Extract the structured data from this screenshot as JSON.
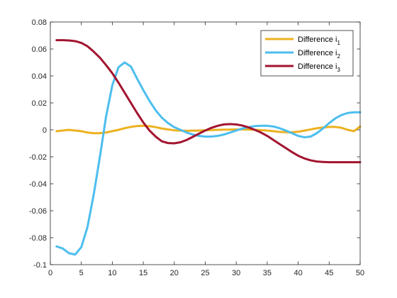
{
  "chart_data": {
    "type": "line",
    "title": "",
    "xlabel": "",
    "ylabel": "",
    "xlim": [
      0,
      50
    ],
    "ylim": [
      -0.1,
      0.08
    ],
    "xticks": [
      0,
      5,
      10,
      15,
      20,
      25,
      30,
      35,
      40,
      45,
      50
    ],
    "yticks": [
      -0.1,
      -0.08,
      -0.06,
      -0.04,
      -0.02,
      0,
      0.02,
      0.04,
      0.06,
      0.08
    ],
    "xtick_labels": [
      "0",
      "5",
      "10",
      "15",
      "20",
      "25",
      "30",
      "35",
      "40",
      "45",
      "50"
    ],
    "ytick_labels": [
      "-0.1",
      "-0.08",
      "-0.06",
      "-0.04",
      "-0.02",
      "0",
      "0.02",
      "0.04",
      "0.06",
      "0.08"
    ],
    "grid": false,
    "legend_position": "top-right",
    "series": [
      {
        "name": "Difference i",
        "subscript": "1",
        "color": "#EDB120",
        "x": [
          1,
          2,
          3,
          4,
          5,
          6,
          7,
          8,
          9,
          10,
          11,
          12,
          13,
          14,
          15,
          16,
          17,
          18,
          19,
          20,
          21,
          22,
          23,
          24,
          25,
          26,
          27,
          28,
          29,
          30,
          31,
          32,
          33,
          34,
          35,
          36,
          37,
          38,
          39,
          40,
          41,
          42,
          43,
          44,
          45,
          46,
          47,
          48,
          49,
          50
        ],
        "y": [
          -0.001,
          -0.0005,
          0,
          -0.0005,
          -0.001,
          -0.002,
          -0.0025,
          -0.0025,
          -0.002,
          -0.001,
          0,
          0.0012,
          0.0022,
          0.0028,
          0.003,
          0.0027,
          0.002,
          0.001,
          0.0003,
          -0.0003,
          -0.0006,
          -0.0007,
          -0.0006,
          -0.0005,
          -0.0003,
          -0.0001,
          0,
          0.0001,
          0.0002,
          0.0003,
          0.0003,
          0.0002,
          0,
          -0.0002,
          -0.0005,
          -0.001,
          -0.0015,
          -0.0018,
          -0.0018,
          -0.0014,
          -0.0006,
          0.0003,
          0.0012,
          0.0018,
          0.0022,
          0.0022,
          0.0015,
          0,
          -0.001,
          0.0025
        ]
      },
      {
        "name": "Difference i",
        "subscript": "2",
        "color": "#4DBEEE",
        "x": [
          1,
          2,
          3,
          4,
          5,
          6,
          7,
          8,
          9,
          10,
          11,
          12,
          13,
          14,
          15,
          16,
          17,
          18,
          19,
          20,
          21,
          22,
          23,
          24,
          25,
          26,
          27,
          28,
          29,
          30,
          31,
          32,
          33,
          34,
          35,
          36,
          37,
          38,
          39,
          40,
          41,
          42,
          43,
          44,
          45,
          46,
          47,
          48,
          49,
          50
        ],
        "y": [
          -0.0865,
          -0.088,
          -0.0915,
          -0.0925,
          -0.087,
          -0.072,
          -0.048,
          -0.02,
          0.01,
          0.033,
          0.0465,
          0.05,
          0.047,
          0.038,
          0.0295,
          0.0215,
          0.0145,
          0.009,
          0.005,
          0.002,
          0,
          -0.002,
          -0.0035,
          -0.0045,
          -0.005,
          -0.005,
          -0.0045,
          -0.0035,
          -0.002,
          -0.0005,
          0.001,
          0.002,
          0.0028,
          0.003,
          0.003,
          0.0025,
          0.0012,
          -0.0005,
          -0.0025,
          -0.0045,
          -0.0055,
          -0.005,
          -0.0025,
          0.001,
          0.005,
          0.0085,
          0.011,
          0.0125,
          0.013,
          0.013
        ]
      },
      {
        "name": "Difference i",
        "subscript": "3",
        "color": "#A2142F",
        "x": [
          1,
          2,
          3,
          4,
          5,
          6,
          7,
          8,
          9,
          10,
          11,
          12,
          13,
          14,
          15,
          16,
          17,
          18,
          19,
          20,
          21,
          22,
          23,
          24,
          25,
          26,
          27,
          28,
          29,
          30,
          31,
          32,
          33,
          34,
          35,
          36,
          37,
          38,
          39,
          40,
          41,
          42,
          43,
          44,
          45,
          46,
          47,
          48,
          49,
          50
        ],
        "y": [
          0.0665,
          0.0665,
          0.0663,
          0.0658,
          0.0645,
          0.062,
          0.058,
          0.0535,
          0.048,
          0.042,
          0.035,
          0.0275,
          0.02,
          0.0125,
          0.0055,
          -0.0005,
          -0.005,
          -0.0085,
          -0.0098,
          -0.01,
          -0.0092,
          -0.0075,
          -0.0052,
          -0.0028,
          -0.0005,
          0.0015,
          0.003,
          0.004,
          0.0043,
          0.004,
          0.0032,
          0.0018,
          0,
          -0.002,
          -0.0045,
          -0.0075,
          -0.0105,
          -0.0135,
          -0.0165,
          -0.0192,
          -0.0212,
          -0.0226,
          -0.0235,
          -0.0238,
          -0.024,
          -0.024,
          -0.024,
          -0.024,
          -0.024,
          -0.024
        ]
      }
    ]
  }
}
